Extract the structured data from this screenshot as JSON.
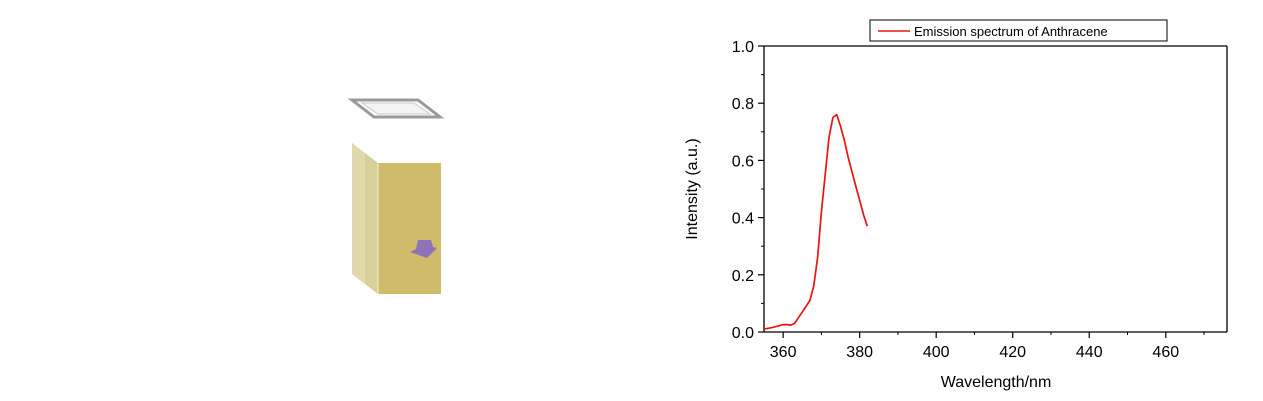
{
  "colors": {
    "series_line": "#ee1111",
    "cuvette_face": "#cebc6b",
    "cuvette_side": "#d9cf98",
    "cuvette_lid": "#9a9a9a",
    "arrow": "#8e73b8",
    "axis": "#000000"
  },
  "illustration": {
    "icon": "cuvette-icon",
    "arrow_icon": "arrow-icon"
  },
  "chart_data": {
    "type": "line",
    "title": "",
    "xlabel": "Wavelength/nm",
    "ylabel": "Intensity (a.u.)",
    "xlim": [
      355,
      476
    ],
    "ylim": [
      0,
      1.0
    ],
    "x_ticks": [
      360,
      380,
      400,
      420,
      440,
      460
    ],
    "y_ticks": [
      0.0,
      0.2,
      0.4,
      0.6,
      0.8,
      1.0
    ],
    "x_tick_labels": [
      "360",
      "380",
      "400",
      "420",
      "440",
      "460"
    ],
    "y_tick_labels": [
      "0.0",
      "0.2",
      "0.4",
      "0.6",
      "0.8",
      "1.0"
    ],
    "legend": {
      "position": "top-right",
      "entries": [
        "Emission spectrum of Anthracene"
      ]
    },
    "grid": false,
    "series": [
      {
        "name": "Emission spectrum of Anthracene",
        "color": "#ee1111",
        "x": [
          355,
          357,
          359,
          360,
          361,
          362,
          363,
          364,
          365,
          366,
          367,
          368,
          369,
          370,
          371,
          372,
          373,
          374,
          375,
          376,
          377,
          378,
          379,
          380,
          381,
          382
        ],
        "y": [
          0.01,
          0.015,
          0.022,
          0.026,
          0.026,
          0.024,
          0.03,
          0.05,
          0.07,
          0.09,
          0.11,
          0.16,
          0.26,
          0.42,
          0.55,
          0.68,
          0.75,
          0.76,
          0.72,
          0.67,
          0.61,
          0.56,
          0.51,
          0.46,
          0.41,
          0.37
        ]
      }
    ]
  }
}
